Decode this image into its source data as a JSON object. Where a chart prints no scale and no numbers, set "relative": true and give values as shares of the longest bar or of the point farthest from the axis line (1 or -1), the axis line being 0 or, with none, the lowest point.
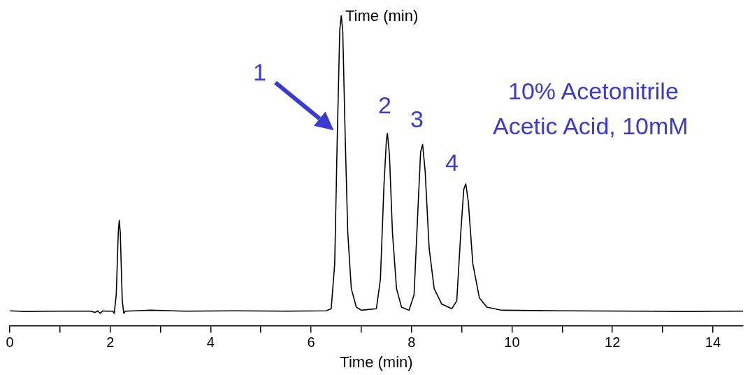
{
  "chart_data": {
    "type": "line",
    "relative": true,
    "xlabel": "Time (min)",
    "color": "#000000",
    "marker": "none",
    "grid": false,
    "legend": false,
    "xlim": [
      0,
      14.6
    ],
    "xticks": [
      0,
      {
        "value": 1,
        "label": null
      },
      2,
      {
        "value": 3,
        "label": null
      },
      4,
      {
        "value": 5,
        "label": null
      },
      6,
      {
        "value": 7,
        "label": null
      },
      8,
      {
        "value": 9,
        "label": null
      },
      10,
      {
        "value": 11,
        "label": null
      },
      12,
      {
        "value": 13,
        "label": null
      },
      14
    ],
    "x": [
      0,
      0.3,
      1.0,
      1.6,
      1.7,
      1.75,
      1.8,
      1.85,
      1.9,
      2.05,
      2.08,
      2.12,
      2.16,
      2.18,
      2.2,
      2.24,
      2.27,
      2.3,
      2.5,
      2.8,
      3.5,
      4.5,
      5.5,
      6.3,
      6.4,
      6.47,
      6.52,
      6.57,
      6.6,
      6.63,
      6.68,
      6.73,
      6.8,
      6.9,
      7.0,
      7.3,
      7.38,
      7.45,
      7.5,
      7.52,
      7.56,
      7.62,
      7.7,
      7.8,
      7.95,
      8.05,
      8.12,
      8.18,
      8.22,
      8.27,
      8.35,
      8.45,
      8.6,
      8.8,
      8.9,
      8.98,
      9.04,
      9.08,
      9.13,
      9.22,
      9.35,
      9.5,
      9.8,
      11,
      12.5,
      13.5,
      14.6
    ],
    "values": [
      0.048,
      0.046,
      0.047,
      0.047,
      0.043,
      0.048,
      0.04,
      0.048,
      0.047,
      0.047,
      0.04,
      0.1,
      0.3,
      0.34,
      0.3,
      0.08,
      0.04,
      0.047,
      0.048,
      0.05,
      0.047,
      0.048,
      0.047,
      0.048,
      0.055,
      0.2,
      0.6,
      0.95,
      1,
      0.95,
      0.6,
      0.3,
      0.12,
      0.06,
      0.05,
      0.055,
      0.15,
      0.45,
      0.6,
      0.62,
      0.55,
      0.3,
      0.12,
      0.06,
      0.05,
      0.1,
      0.35,
      0.56,
      0.584,
      0.5,
      0.25,
      0.12,
      0.07,
      0.055,
      0.08,
      0.3,
      0.44,
      0.457,
      0.4,
      0.2,
      0.09,
      0.06,
      0.05,
      0.048,
      0.047,
      0.046,
      0.047
    ],
    "annotations": [
      "Time (min)",
      "10% Acetonitrile",
      "Acetic Acid, 10mM",
      "1",
      "2",
      "3",
      "4"
    ]
  }
}
